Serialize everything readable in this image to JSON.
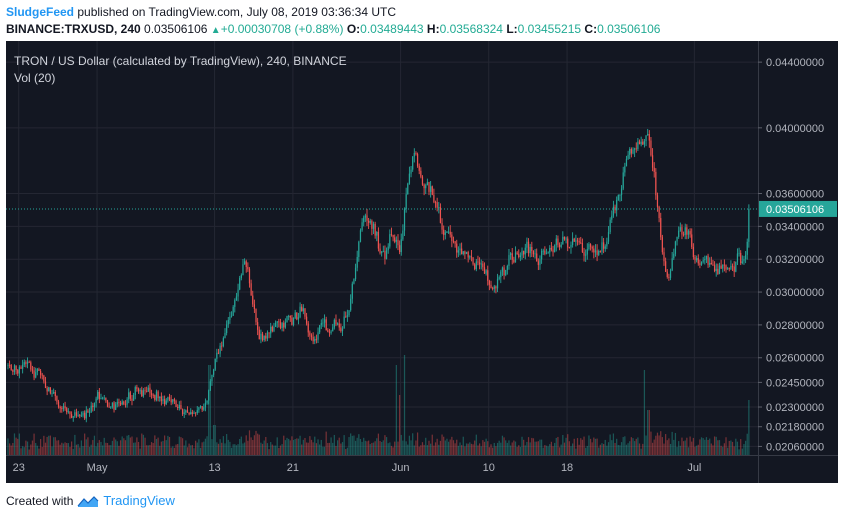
{
  "header": {
    "username": "SludgeFeed",
    "published_text": "published on TradingView.com, July 08, 2019 03:36:34 UTC",
    "symbol": "BINANCE:TRXUSD, 240",
    "last_price": "0.03506106",
    "change_arrow": "▲",
    "change": "+0.00030708 (+0.88%)",
    "o_label": "O:",
    "o_value": "0.03489443",
    "h_label": "H:",
    "h_value": "0.03568324",
    "l_label": "L:",
    "l_value": "0.03455215",
    "c_label": "C:",
    "c_value": "0.03506106"
  },
  "footer": {
    "created_with": "Created with",
    "brand": "TradingView"
  },
  "colors": {
    "background": "#131722",
    "bull": "#26a69a",
    "bear": "#ef5350",
    "grid": "#242733",
    "price_line": "#26a69a",
    "axis_text": "#b2b5be"
  },
  "chart_data": {
    "type": "candlestick",
    "title": "TRON / US Dollar (calculated by TradingView), 240, BINANCE",
    "indicator": "Vol (20)",
    "current_price": 0.03506106,
    "current_price_label": "0.03506106",
    "ylim": [
      0.0202,
      0.0448
    ],
    "y_ticks": [
      {
        "label": "0.04400000",
        "value": 0.044
      },
      {
        "label": "0.04000000",
        "value": 0.04
      },
      {
        "label": "0.03600000",
        "value": 0.036
      },
      {
        "label": "0.03400000",
        "value": 0.034
      },
      {
        "label": "0.03200000",
        "value": 0.032
      },
      {
        "label": "0.03000000",
        "value": 0.03
      },
      {
        "label": "0.02800000",
        "value": 0.028
      },
      {
        "label": "0.02600000",
        "value": 0.026
      },
      {
        "label": "0.02450000",
        "value": 0.0245
      },
      {
        "label": "0.02300000",
        "value": 0.023
      },
      {
        "label": "0.02180000",
        "value": 0.0218
      },
      {
        "label": "0.02060000",
        "value": 0.0206
      }
    ],
    "x_ticks": [
      {
        "label": "23",
        "day": 0
      },
      {
        "label": "May",
        "day": 8
      },
      {
        "label": "13",
        "day": 20
      },
      {
        "label": "21",
        "day": 28
      },
      {
        "label": "Jun",
        "day": 39
      },
      {
        "label": "10",
        "day": 48
      },
      {
        "label": "18",
        "day": 56
      },
      {
        "label": "Jul",
        "day": 69
      }
    ],
    "x_range_days": [
      -1.3,
      75.5
    ],
    "candles_per_day": 6,
    "price_path": [
      [
        0,
        0.0255
      ],
      [
        2,
        0.025
      ],
      [
        4,
        0.0232
      ],
      [
        6,
        0.0222
      ],
      [
        8,
        0.0236
      ],
      [
        10,
        0.023
      ],
      [
        12,
        0.024
      ],
      [
        15,
        0.0235
      ],
      [
        17,
        0.0225
      ],
      [
        19,
        0.023
      ],
      [
        20,
        0.026
      ],
      [
        22,
        0.029
      ],
      [
        23,
        0.032
      ],
      [
        24.5,
        0.027
      ],
      [
        26,
        0.0278
      ],
      [
        28,
        0.0283
      ],
      [
        29,
        0.029
      ],
      [
        30,
        0.0265
      ],
      [
        31,
        0.028
      ],
      [
        33,
        0.0278
      ],
      [
        34,
        0.03
      ],
      [
        35,
        0.035
      ],
      [
        36,
        0.0345
      ],
      [
        37,
        0.032
      ],
      [
        38,
        0.0335
      ],
      [
        39,
        0.033
      ],
      [
        40,
        0.039
      ],
      [
        41,
        0.0375
      ],
      [
        42,
        0.036
      ],
      [
        43,
        0.034
      ],
      [
        44,
        0.033
      ],
      [
        46,
        0.032
      ],
      [
        47.5,
        0.0315
      ],
      [
        48.5,
        0.0302
      ],
      [
        50,
        0.032
      ],
      [
        52,
        0.0325
      ],
      [
        53,
        0.0318
      ],
      [
        55,
        0.033
      ],
      [
        57,
        0.0328
      ],
      [
        59,
        0.0325
      ],
      [
        60,
        0.0332
      ],
      [
        61,
        0.0355
      ],
      [
        62,
        0.038
      ],
      [
        63,
        0.039
      ],
      [
        64,
        0.0395
      ],
      [
        64.7,
        0.038
      ],
      [
        65.3,
        0.034
      ],
      [
        66,
        0.0305
      ],
      [
        67,
        0.033
      ],
      [
        68,
        0.0338
      ],
      [
        69,
        0.0315
      ],
      [
        70,
        0.0318
      ],
      [
        71,
        0.0312
      ],
      [
        72,
        0.032
      ],
      [
        73,
        0.0316
      ],
      [
        74,
        0.0325
      ],
      [
        74.7,
        0.0351
      ]
    ],
    "volume_spikes": [
      {
        "day": 19.5,
        "rel": 0.9
      },
      {
        "day": 20,
        "rel": 0.3
      },
      {
        "day": 38.5,
        "rel": 0.9
      },
      {
        "day": 38.9,
        "rel": 0.6
      },
      {
        "day": 39.4,
        "rel": 1.0
      },
      {
        "day": 63.9,
        "rel": 0.85
      },
      {
        "day": 64.3,
        "rel": 0.45
      },
      {
        "day": 74.5,
        "rel": 0.55
      }
    ]
  }
}
